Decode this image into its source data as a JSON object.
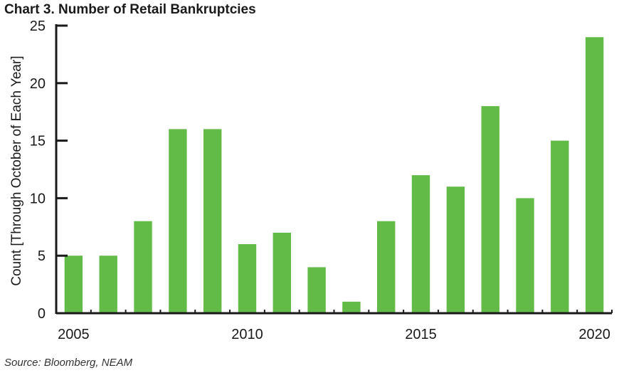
{
  "chart_data": {
    "type": "bar",
    "title": "Chart 3. Number of Retail Bankruptcies",
    "ylabel": "Count [Through October of Each Year]",
    "xlabel": "",
    "source": "Source: Bloomberg, NEAM",
    "categories": [
      "2005",
      "2006",
      "2007",
      "2008",
      "2009",
      "2010",
      "2011",
      "2012",
      "2013",
      "2014",
      "2015",
      "2016",
      "2017",
      "2018",
      "2019",
      "2020"
    ],
    "values": [
      5,
      5,
      8,
      16,
      16,
      6,
      7,
      4,
      1,
      8,
      12,
      11,
      18,
      10,
      15,
      24
    ],
    "x_tick_labels": [
      "2005",
      "2010",
      "2015",
      "2020"
    ],
    "y_ticks": [
      0,
      5,
      10,
      15,
      20,
      25
    ],
    "ylim": [
      0,
      25
    ],
    "bar_color": "#62bb46",
    "axis_color": "#1a1a1a",
    "grid": false
  }
}
